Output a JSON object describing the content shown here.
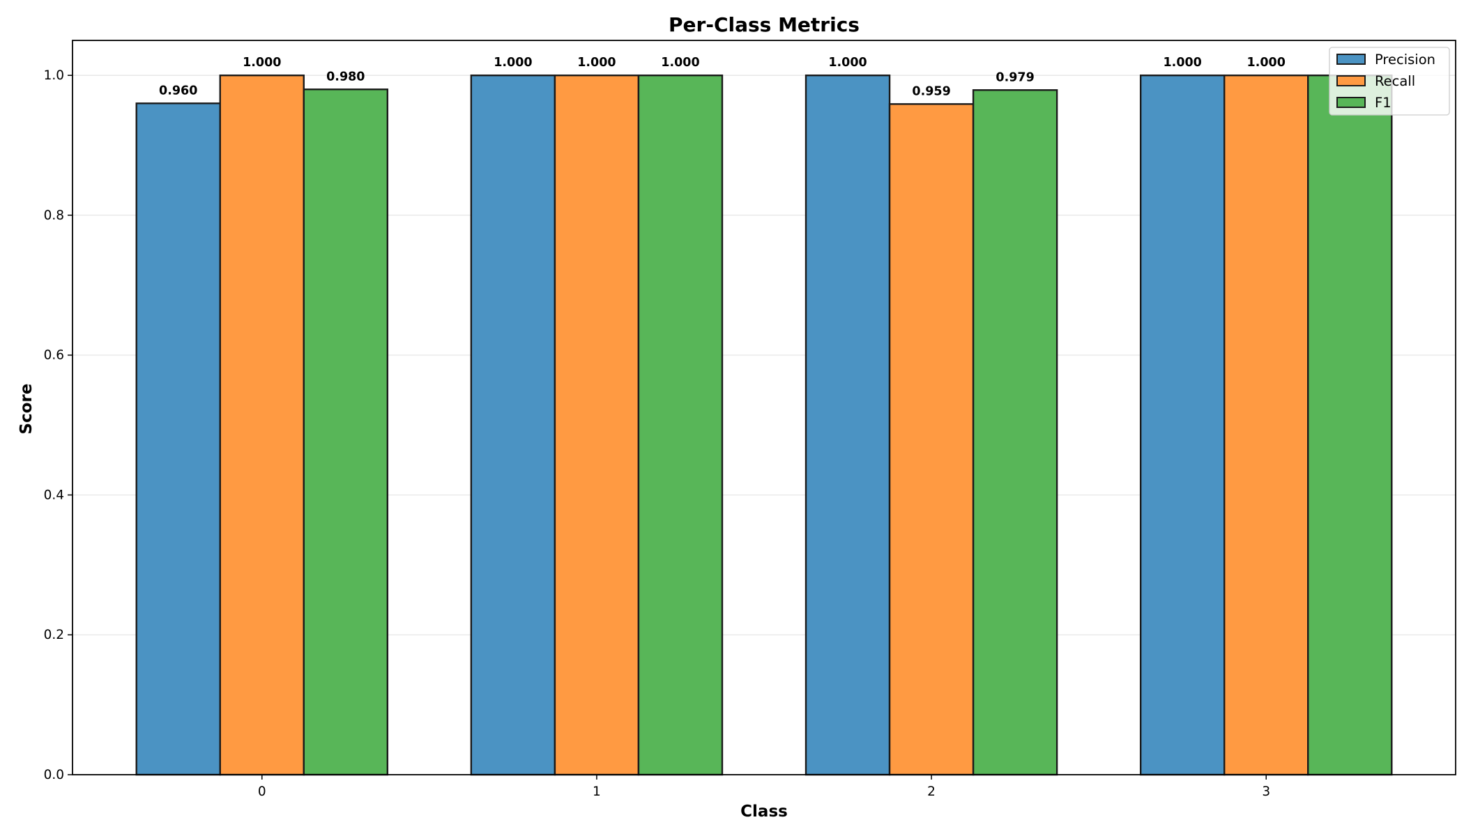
{
  "chart_data": {
    "type": "bar",
    "title": "Per-Class Metrics",
    "xlabel": "Class",
    "ylabel": "Score",
    "categories": [
      "0",
      "1",
      "2",
      "3"
    ],
    "series": [
      {
        "name": "Precision",
        "color": "#4b93c3",
        "values": [
          0.96,
          1.0,
          1.0,
          1.0
        ],
        "labels": [
          "0.960",
          "1.000",
          "1.000",
          "1.000"
        ]
      },
      {
        "name": "Recall",
        "color": "#ff9a42",
        "values": [
          1.0,
          1.0,
          0.959,
          1.0
        ],
        "labels": [
          "1.000",
          "1.000",
          "0.959",
          "1.000"
        ]
      },
      {
        "name": "F1",
        "color": "#58b658",
        "values": [
          0.98,
          1.0,
          0.979,
          1.0
        ],
        "labels": [
          "0.980",
          "1.000",
          "0.979",
          ""
        ]
      }
    ],
    "ylim": [
      0,
      1.05
    ],
    "yticks": [
      "0.0",
      "0.2",
      "0.4",
      "0.6",
      "0.8",
      "1.0"
    ],
    "grid": true,
    "legend_position": "top-right"
  }
}
